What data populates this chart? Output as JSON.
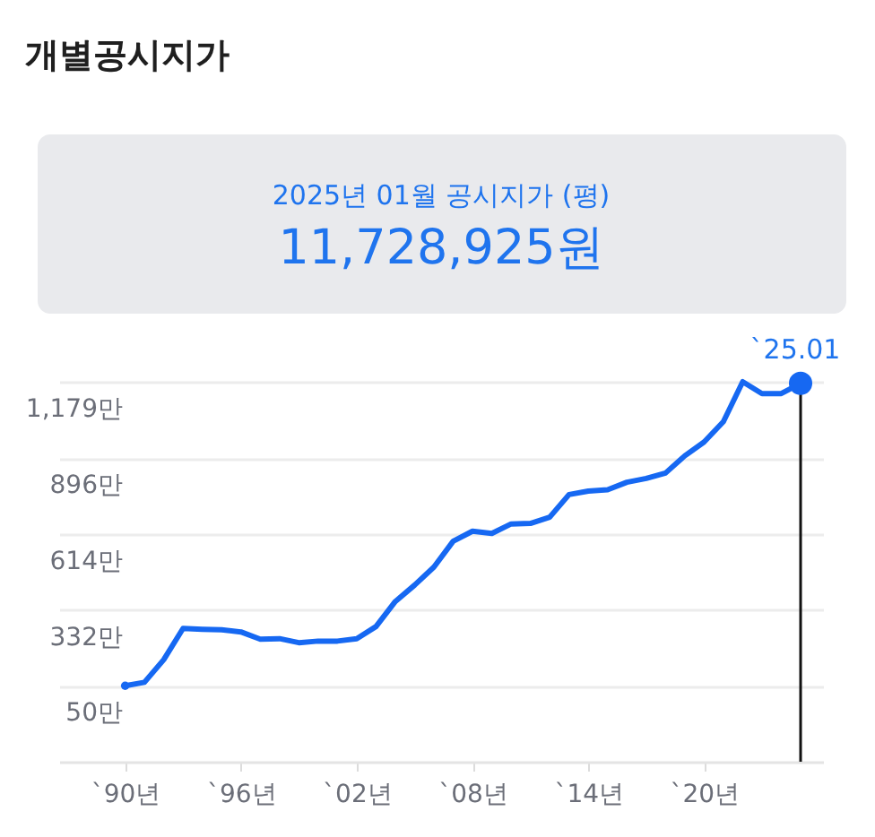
{
  "chart_data": {
    "type": "line",
    "title": "개별공시지가",
    "subtitle": "2025년 01월 공시지가 (평)",
    "annotations": [
      "11,728,925원",
      {
        "text": "`25.01",
        "x": "2025-01",
        "y": 1173
      }
    ],
    "x": [
      "1990-01",
      "1991-01",
      "1992-01",
      "1993-01",
      "1994-01",
      "1995-01",
      "1996-01",
      "1997-01",
      "1998-01",
      "1999-01",
      "2000-01",
      "2001-01",
      "2002-01",
      "2003-01",
      "2004-01",
      "2005-01",
      "2006-01",
      "2007-01",
      "2008-01",
      "2009-01",
      "2010-01",
      "2011-01",
      "2012-01",
      "2013-01",
      "2014-01",
      "2015-01",
      "2016-01",
      "2017-01",
      "2018-01",
      "2019-01",
      "2020-01",
      "2021-01",
      "2022-01",
      "2023-01",
      "2024-01",
      "2025-01"
    ],
    "series": [
      {
        "color": "#1668f2",
        "values": [
          50,
          63,
          147,
          263,
          260,
          258,
          250,
          223,
          225,
          210,
          216,
          216,
          225,
          270,
          363,
          424,
          491,
          587,
          624,
          616,
          651,
          653,
          676,
          760,
          773,
          778,
          806,
          820,
          840,
          904,
          955,
          1031,
          1179,
          1135,
          1135,
          1173
        ]
      },
      {
        "type": "bubble",
        "color": "#1668f2",
        "x": [
          "1990-01",
          "2025-01"
        ],
        "values": [
          50,
          1173
        ],
        "sizes": [
          0.13,
          1
        ]
      }
    ],
    "xlim": [
      "1986-08",
      "2026-03"
    ],
    "xticks": [
      {
        "value": "1990-01",
        "label": "`90년"
      },
      {
        "value": "1996-01",
        "label": "`96년"
      },
      {
        "value": "2002-01",
        "label": "`02년"
      },
      {
        "value": "2008-01",
        "label": "`08년"
      },
      {
        "value": "2014-01",
        "label": "`14년"
      },
      {
        "value": "2020-01",
        "label": "`20년"
      }
    ],
    "ylim": [
      -232,
      1179
    ],
    "yticks": [
      {
        "value": 50,
        "label": "50만"
      },
      {
        "value": 332,
        "label": "332만"
      },
      {
        "value": 614,
        "label": "614만"
      },
      {
        "value": 896,
        "label": "896만"
      },
      {
        "value": 1179,
        "label": "1,179만"
      }
    ],
    "grid": "y",
    "ref_lines": [
      {
        "axis": "x",
        "value": "2025-01",
        "color": "#111111"
      }
    ]
  }
}
